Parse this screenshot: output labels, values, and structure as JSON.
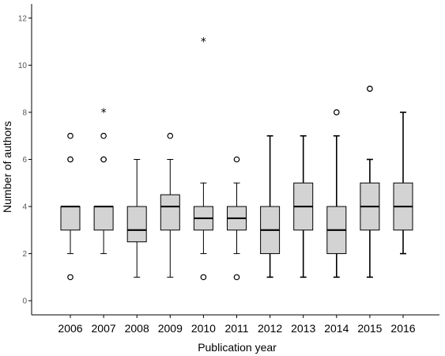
{
  "chart_data": {
    "type": "boxplot",
    "xlabel": "Publication year",
    "ylabel": "Number of authors",
    "ylim": [
      -0.6,
      12.6
    ],
    "yticks": [
      0,
      2,
      4,
      6,
      8,
      10,
      12
    ],
    "grid": false,
    "colors": {
      "box_fill": "#d3d3d3",
      "stroke": "#000000",
      "axis": "#000000"
    },
    "categories": [
      "2006",
      "2007",
      "2008",
      "2009",
      "2010",
      "2011",
      "2012",
      "2013",
      "2014",
      "2015",
      "2016"
    ],
    "boxes": [
      {
        "category": "2006",
        "whisker_low": 2,
        "q1": 3,
        "median": 4,
        "q3": 4,
        "whisker_high": 4,
        "outliers": [
          1,
          6,
          6,
          7
        ],
        "extremes": []
      },
      {
        "category": "2007",
        "whisker_low": 2,
        "q1": 3,
        "median": 4,
        "q3": 4,
        "whisker_high": 4,
        "outliers": [
          6,
          6,
          7
        ],
        "extremes": [
          8
        ]
      },
      {
        "category": "2008",
        "whisker_low": 1,
        "q1": 2.5,
        "median": 3,
        "q3": 4,
        "whisker_high": 6,
        "outliers": [],
        "extremes": []
      },
      {
        "category": "2009",
        "whisker_low": 1,
        "q1": 3,
        "median": 4,
        "q3": 4.5,
        "whisker_high": 6,
        "outliers": [
          7
        ],
        "extremes": []
      },
      {
        "category": "2010",
        "whisker_low": 2,
        "q1": 3,
        "median": 3.5,
        "q3": 4,
        "whisker_high": 5,
        "outliers": [
          1
        ],
        "extremes": [
          11
        ]
      },
      {
        "category": "2011",
        "whisker_low": 2,
        "q1": 3,
        "median": 3.5,
        "q3": 4,
        "whisker_high": 5,
        "outliers": [
          1,
          6
        ],
        "extremes": []
      },
      {
        "category": "2012",
        "whisker_low": 1,
        "q1": 2,
        "median": 3,
        "q3": 4,
        "whisker_high": 7,
        "outliers": [],
        "extremes": []
      },
      {
        "category": "2013",
        "whisker_low": 1,
        "q1": 3,
        "median": 4,
        "q3": 5,
        "whisker_high": 7,
        "outliers": [],
        "extremes": []
      },
      {
        "category": "2014",
        "whisker_low": 1,
        "q1": 2,
        "median": 3,
        "q3": 4,
        "whisker_high": 7,
        "outliers": [
          8
        ],
        "extremes": []
      },
      {
        "category": "2015",
        "whisker_low": 1,
        "q1": 3,
        "median": 4,
        "q3": 5,
        "whisker_high": 6,
        "outliers": [
          9,
          9
        ],
        "extremes": []
      },
      {
        "category": "2016",
        "whisker_low": 2,
        "q1": 3,
        "median": 4,
        "q3": 5,
        "whisker_high": 8,
        "outliers": [],
        "extremes": []
      }
    ]
  }
}
